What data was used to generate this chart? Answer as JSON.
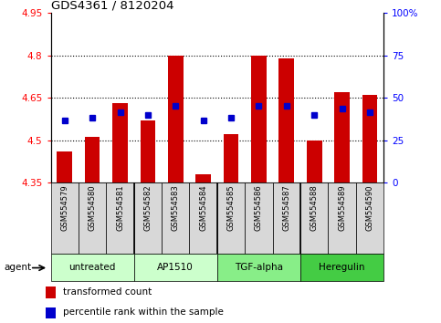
{
  "title": "GDS4361 / 8120204",
  "samples": [
    "GSM554579",
    "GSM554580",
    "GSM554581",
    "GSM554582",
    "GSM554583",
    "GSM554584",
    "GSM554585",
    "GSM554586",
    "GSM554587",
    "GSM554588",
    "GSM554589",
    "GSM554590"
  ],
  "red_values": [
    4.46,
    4.51,
    4.63,
    4.57,
    4.8,
    4.38,
    4.52,
    4.8,
    4.79,
    4.5,
    4.67,
    4.66
  ],
  "blue_values": [
    4.57,
    4.58,
    4.6,
    4.59,
    4.62,
    4.57,
    4.58,
    4.62,
    4.62,
    4.59,
    4.61,
    4.6
  ],
  "ymin": 4.35,
  "ymax": 4.95,
  "yticks": [
    4.35,
    4.5,
    4.65,
    4.8,
    4.95
  ],
  "ytick_labels": [
    "4.35",
    "4.5",
    "4.65",
    "4.8",
    "4.95"
  ],
  "right_ytick_labels": [
    "0",
    "25",
    "50",
    "75",
    "100%"
  ],
  "grid_values": [
    4.5,
    4.65,
    4.8
  ],
  "agent_groups": [
    {
      "label": "untreated",
      "start": 0,
      "end": 3,
      "color": "#ccffcc"
    },
    {
      "label": "AP1510",
      "start": 3,
      "end": 6,
      "color": "#ccffcc"
    },
    {
      "label": "TGF-alpha",
      "start": 6,
      "end": 9,
      "color": "#88ee88"
    },
    {
      "label": "Heregulin",
      "start": 9,
      "end": 12,
      "color": "#44cc44"
    }
  ],
  "bar_bottom": 4.35,
  "bar_width": 0.55,
  "blue_marker_size": 5,
  "red_color": "#cc0000",
  "blue_color": "#0000cc",
  "sample_bg": "#d8d8d8",
  "legend_red_label": "transformed count",
  "legend_blue_label": "percentile rank within the sample",
  "agent_label": "agent"
}
